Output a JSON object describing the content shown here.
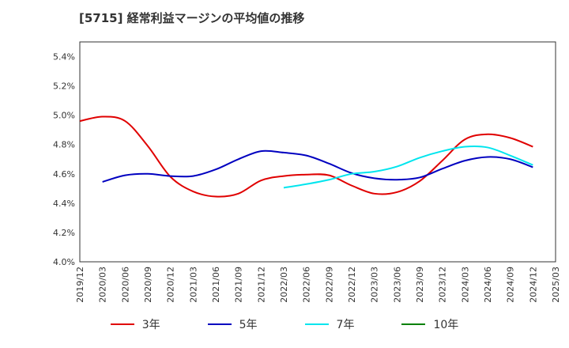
{
  "title": "[5715]  経常利益マージンの平均値の推移",
  "chart_data": {
    "type": "line",
    "title": "[5715]  経常利益マージンの平均値の推移",
    "xlabel": "",
    "ylabel": "",
    "ylim": [
      4.0,
      5.5
    ],
    "yticks": [
      4.0,
      4.2,
      4.4,
      4.6,
      4.8,
      5.0,
      5.2,
      5.4
    ],
    "ytick_labels": [
      "4.0%",
      "4.2%",
      "4.4%",
      "4.6%",
      "4.8%",
      "5.0%",
      "5.2%",
      "5.4%"
    ],
    "categories": [
      "2019/12",
      "2020/03",
      "2020/06",
      "2020/09",
      "2020/12",
      "2021/03",
      "2021/06",
      "2021/09",
      "2021/12",
      "2022/03",
      "2022/06",
      "2022/09",
      "2022/12",
      "2023/03",
      "2023/06",
      "2023/09",
      "2023/12",
      "2024/03",
      "2024/06",
      "2024/09",
      "2024/12",
      "2025/03"
    ],
    "grid": true,
    "legend_position": "bottom",
    "series": [
      {
        "name": "3年",
        "color": "#e00000",
        "values": [
          4.96,
          4.99,
          4.96,
          4.79,
          4.58,
          4.48,
          4.445,
          4.465,
          4.555,
          4.585,
          4.595,
          4.59,
          4.52,
          4.465,
          4.475,
          4.55,
          4.69,
          4.835,
          4.87,
          4.845,
          4.785,
          null
        ]
      },
      {
        "name": "5年",
        "color": "#0000c0",
        "values": [
          null,
          4.545,
          4.59,
          4.6,
          4.585,
          4.585,
          4.63,
          4.7,
          4.755,
          4.745,
          4.725,
          4.67,
          4.605,
          4.57,
          4.56,
          4.575,
          4.635,
          4.69,
          4.715,
          4.7,
          4.645,
          null
        ]
      },
      {
        "name": "7年",
        "color": "#00e5ee",
        "values": [
          null,
          null,
          null,
          null,
          null,
          null,
          null,
          null,
          null,
          4.505,
          4.53,
          4.56,
          4.6,
          4.615,
          4.65,
          4.71,
          4.755,
          4.785,
          4.78,
          4.725,
          4.66,
          null
        ]
      },
      {
        "name": "10年",
        "color": "#008000",
        "values": [
          null,
          null,
          null,
          null,
          null,
          null,
          null,
          null,
          null,
          null,
          null,
          null,
          null,
          null,
          null,
          null,
          null,
          null,
          null,
          null,
          null,
          null
        ]
      }
    ]
  }
}
